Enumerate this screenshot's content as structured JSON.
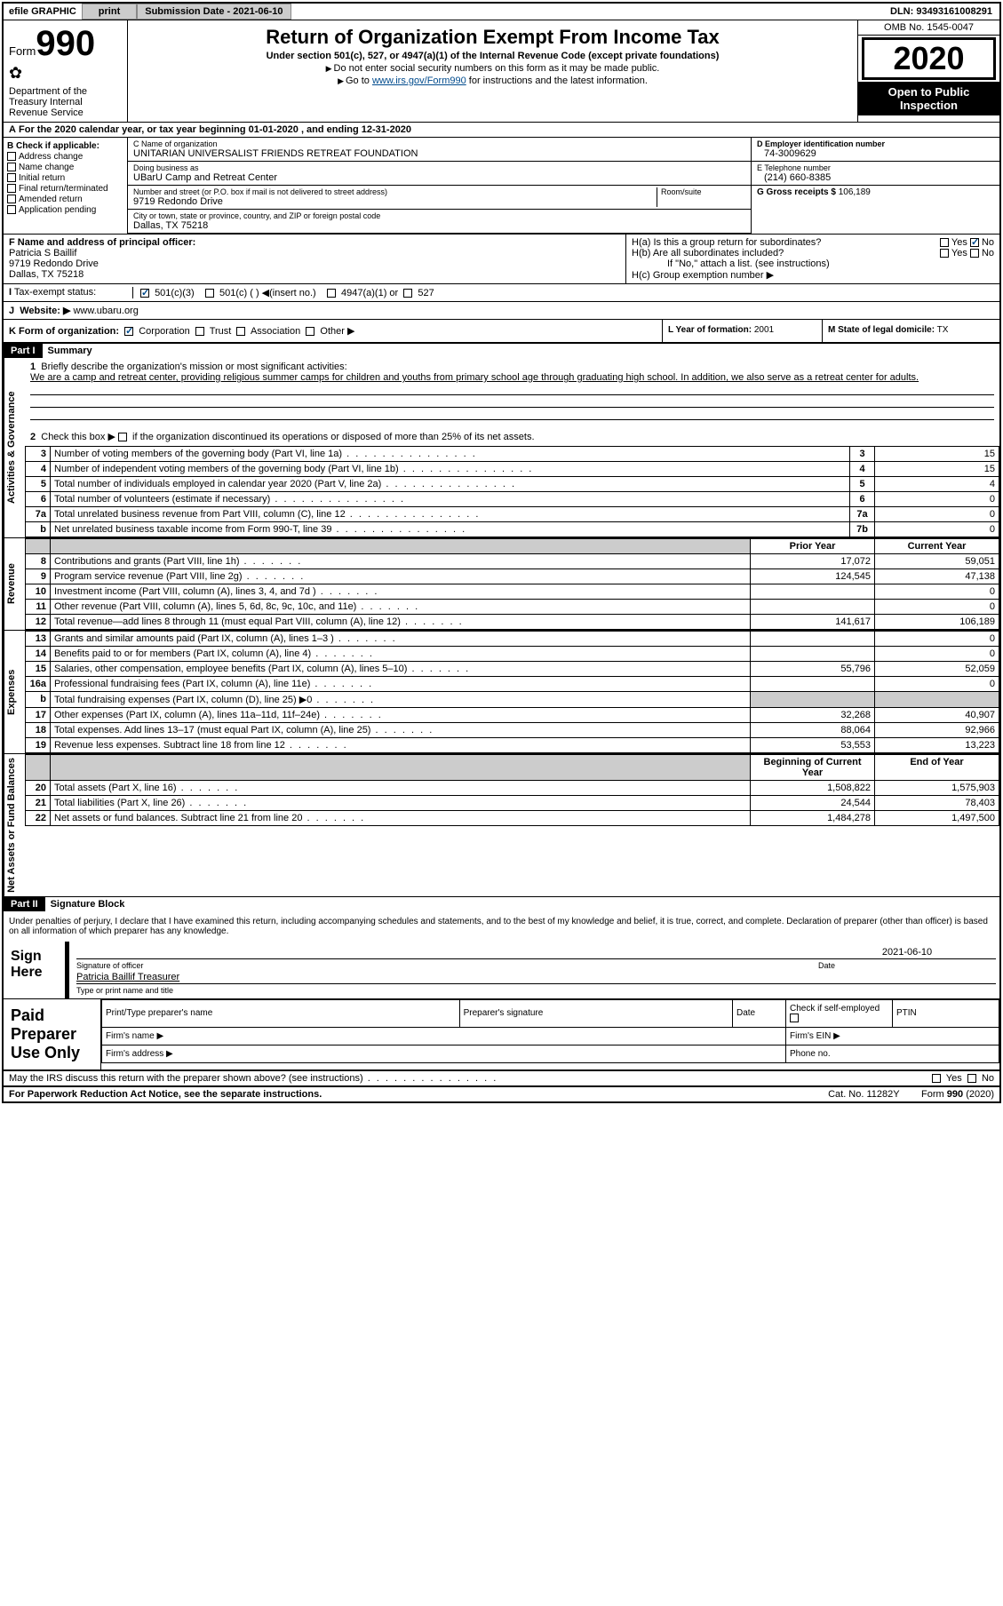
{
  "top": {
    "efile": "efile GRAPHIC",
    "print": "print",
    "subdate_lbl": "Submission Date - 2021-06-10",
    "dln": "DLN: 93493161008291"
  },
  "header": {
    "form_word": "Form",
    "form_num": "990",
    "dept": "Department of the Treasury Internal Revenue Service",
    "title": "Return of Organization Exempt From Income Tax",
    "sub": "Under section 501(c), 527, or 4947(a)(1) of the Internal Revenue Code (except private foundations)",
    "note1": "Do not enter social security numbers on this form as it may be made public.",
    "note2_pre": "Go to ",
    "note2_link": "www.irs.gov/Form990",
    "note2_post": " for instructions and the latest information.",
    "omb": "OMB No. 1545-0047",
    "year": "2020",
    "open": "Open to Public Inspection"
  },
  "period": "For the 2020 calendar year, or tax year beginning 01-01-2020   , and ending 12-31-2020",
  "b": {
    "lbl": "B Check if applicable:",
    "i1": "Address change",
    "i2": "Name change",
    "i3": "Initial return",
    "i4": "Final return/terminated",
    "i5": "Amended return",
    "i6": "Application pending"
  },
  "c": {
    "name_lbl": "C Name of organization",
    "name": "UNITARIAN UNIVERSALIST FRIENDS RETREAT FOUNDATION",
    "dba_lbl": "Doing business as",
    "dba": "UBarU Camp and Retreat Center",
    "addr_lbl": "Number and street (or P.O. box if mail is not delivered to street address)",
    "addr": "9719 Redondo Drive",
    "room_lbl": "Room/suite",
    "city_lbl": "City or town, state or province, country, and ZIP or foreign postal code",
    "city": "Dallas, TX  75218"
  },
  "d": {
    "lbl": "D Employer identification number",
    "val": "74-3009629"
  },
  "e": {
    "lbl": "E Telephone number",
    "val": "(214) 660-8385"
  },
  "g": {
    "lbl": "G Gross receipts $",
    "val": "106,189"
  },
  "f": {
    "lbl": "F  Name and address of principal officer:",
    "name": "Patricia S Baillif",
    "addr1": "9719 Redondo Drive",
    "addr2": "Dallas, TX  75218"
  },
  "h": {
    "a": "H(a)  Is this a group return for subordinates?",
    "b": "H(b)  Are all subordinates included?",
    "b_note": "If \"No,\" attach a list. (see instructions)",
    "c": "H(c)  Group exemption number ▶",
    "yes": "Yes",
    "no": "No"
  },
  "i": {
    "lbl": "Tax-exempt status:",
    "o1": "501(c)(3)",
    "o2": "501(c) (  ) ◀(insert no.)",
    "o3": "4947(a)(1) or",
    "o4": "527"
  },
  "j": {
    "lbl": "J",
    "label": "Website: ▶",
    "val": "www.ubaru.org"
  },
  "k": {
    "lbl": "K Form of organization:",
    "o1": "Corporation",
    "o2": "Trust",
    "o3": "Association",
    "o4": "Other ▶"
  },
  "l": {
    "lbl": "L Year of formation:",
    "val": "2001"
  },
  "m": {
    "lbl": "M State of legal domicile:",
    "val": "TX"
  },
  "part1": {
    "hdr": "Part I",
    "title": "Summary",
    "l1_lbl": "1",
    "l1": "Briefly describe the organization's mission or most significant activities:",
    "l1_text": "We are a camp and retreat center, providing religious summer camps for children and youths from primary school age through graduating high school. In addition, we also serve as a retreat center for adults.",
    "l2": "Check this box ▶     if the organization discontinued its operations or disposed of more than 25% of its net assets.",
    "side1": "Activities & Governance",
    "side2": "Revenue",
    "side3": "Expenses",
    "side4": "Net Assets or Fund Balances",
    "rows_gov": [
      {
        "n": "3",
        "d": "Number of voting members of the governing body (Part VI, line 1a)",
        "b": "3",
        "v": "15"
      },
      {
        "n": "4",
        "d": "Number of independent voting members of the governing body (Part VI, line 1b)",
        "b": "4",
        "v": "15"
      },
      {
        "n": "5",
        "d": "Total number of individuals employed in calendar year 2020 (Part V, line 2a)",
        "b": "5",
        "v": "4"
      },
      {
        "n": "6",
        "d": "Total number of volunteers (estimate if necessary)",
        "b": "6",
        "v": "0"
      },
      {
        "n": "7a",
        "d": "Total unrelated business revenue from Part VIII, column (C), line 12",
        "b": "7a",
        "v": "0"
      },
      {
        "n": "b",
        "d": "Net unrelated business taxable income from Form 990-T, line 39",
        "b": "7b",
        "v": "0"
      }
    ],
    "col_py": "Prior Year",
    "col_cy": "Current Year",
    "rows_rev": [
      {
        "n": "8",
        "d": "Contributions and grants (Part VIII, line 1h)",
        "py": "17,072",
        "cy": "59,051"
      },
      {
        "n": "9",
        "d": "Program service revenue (Part VIII, line 2g)",
        "py": "124,545",
        "cy": "47,138"
      },
      {
        "n": "10",
        "d": "Investment income (Part VIII, column (A), lines 3, 4, and 7d )",
        "py": "",
        "cy": "0"
      },
      {
        "n": "11",
        "d": "Other revenue (Part VIII, column (A), lines 5, 6d, 8c, 9c, 10c, and 11e)",
        "py": "",
        "cy": "0"
      },
      {
        "n": "12",
        "d": "Total revenue—add lines 8 through 11 (must equal Part VIII, column (A), line 12)",
        "py": "141,617",
        "cy": "106,189"
      }
    ],
    "rows_exp": [
      {
        "n": "13",
        "d": "Grants and similar amounts paid (Part IX, column (A), lines 1–3 )",
        "py": "",
        "cy": "0"
      },
      {
        "n": "14",
        "d": "Benefits paid to or for members (Part IX, column (A), line 4)",
        "py": "",
        "cy": "0"
      },
      {
        "n": "15",
        "d": "Salaries, other compensation, employee benefits (Part IX, column (A), lines 5–10)",
        "py": "55,796",
        "cy": "52,059"
      },
      {
        "n": "16a",
        "d": "Professional fundraising fees (Part IX, column (A), line 11e)",
        "py": "",
        "cy": "0"
      },
      {
        "n": "b",
        "d": "Total fundraising expenses (Part IX, column (D), line 25) ▶0",
        "py": "shade",
        "cy": "shade"
      },
      {
        "n": "17",
        "d": "Other expenses (Part IX, column (A), lines 11a–11d, 11f–24e)",
        "py": "32,268",
        "cy": "40,907"
      },
      {
        "n": "18",
        "d": "Total expenses. Add lines 13–17 (must equal Part IX, column (A), line 25)",
        "py": "88,064",
        "cy": "92,966"
      },
      {
        "n": "19",
        "d": "Revenue less expenses. Subtract line 18 from line 12",
        "py": "53,553",
        "cy": "13,223"
      }
    ],
    "col_bcy": "Beginning of Current Year",
    "col_eoy": "End of Year",
    "rows_net": [
      {
        "n": "20",
        "d": "Total assets (Part X, line 16)",
        "py": "1,508,822",
        "cy": "1,575,903"
      },
      {
        "n": "21",
        "d": "Total liabilities (Part X, line 26)",
        "py": "24,544",
        "cy": "78,403"
      },
      {
        "n": "22",
        "d": "Net assets or fund balances. Subtract line 21 from line 20",
        "py": "1,484,278",
        "cy": "1,497,500"
      }
    ]
  },
  "part2": {
    "hdr": "Part II",
    "title": "Signature Block",
    "decl": "Under penalties of perjury, I declare that I have examined this return, including accompanying schedules and statements, and to the best of my knowledge and belief, it is true, correct, and complete. Declaration of preparer (other than officer) is based on all information of which preparer has any knowledge.",
    "sign_here": "Sign Here",
    "sig_of": "Signature of officer",
    "date": "Date",
    "date_val": "2021-06-10",
    "name_title": "Patricia Baillif Treasurer",
    "type_name": "Type or print name and title",
    "paid": "Paid Preparer Use Only",
    "pp_name": "Print/Type preparer's name",
    "pp_sig": "Preparer's signature",
    "pp_date": "Date",
    "pp_chk": "Check      if self-employed",
    "ptin": "PTIN",
    "firm_name": "Firm's name   ▶",
    "firm_ein": "Firm's EIN ▶",
    "firm_addr": "Firm's address ▶",
    "phone": "Phone no."
  },
  "footer": {
    "discuss": "May the IRS discuss this return with the preparer shown above? (see instructions)",
    "yes": "Yes",
    "no": "No",
    "pra": "For Paperwork Reduction Act Notice, see the separate instructions.",
    "cat": "Cat. No. 11282Y",
    "form": "Form 990 (2020)"
  }
}
